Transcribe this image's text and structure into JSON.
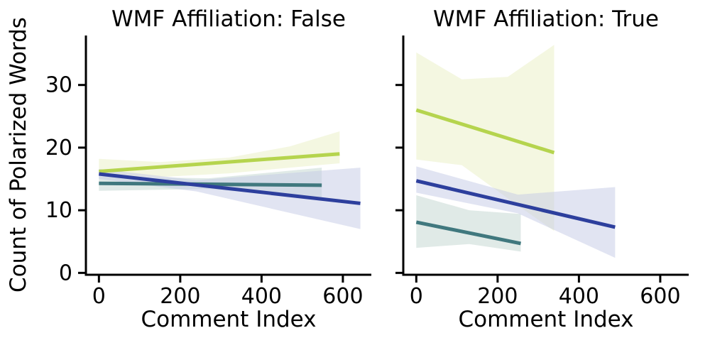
{
  "chart_data": {
    "type": "line",
    "description": "Two-facet regression plot (lmplot style) of polarized word counts vs comment index, three groups per facet with confidence bands",
    "xlabel": "Comment Index",
    "ylabel": "Count of Polarized Words",
    "xlim": [
      -32,
      670
    ],
    "ylim": [
      -0.3,
      37.9
    ],
    "xticks": [
      0,
      200,
      400,
      600
    ],
    "yticks": [
      0,
      10,
      20,
      30
    ],
    "grid": false,
    "legend": "none",
    "axis_color": "#000000",
    "facets": [
      {
        "title": "WMF Affiliation: False",
        "series": [
          {
            "name": "group-green",
            "color": "#b5d44e",
            "band_color": "#e9efc4",
            "x": [
              0,
              592
            ],
            "y": [
              16.2,
              19.0
            ],
            "band": {
              "x": [
                0,
                150,
                320,
                470,
                592
              ],
              "top": [
                18.2,
                17.7,
                18.4,
                20.2,
                22.6
              ],
              "bottom": [
                15.6,
                15.3,
                15.9,
                16.8,
                17.5
              ]
            }
          },
          {
            "name": "group-teal",
            "color": "#40787e",
            "band_color": "#c2d6cf",
            "x": [
              0,
              548
            ],
            "y": [
              14.3,
              14.0
            ],
            "band": {
              "x": [
                0,
                270,
                548
              ],
              "top": [
                15.4,
                15.1,
                16.8
              ],
              "bottom": [
                13.1,
                13.4,
                11.9
              ]
            }
          },
          {
            "name": "group-blue",
            "color": "#2d3f9d",
            "band_color": "#c3c9e6",
            "x": [
              0,
              643
            ],
            "y": [
              15.8,
              11.1
            ],
            "band": {
              "x": [
                0,
                240,
                643
              ],
              "top": [
                16.6,
                14.8,
                16.8
              ],
              "bottom": [
                15.0,
                13.0,
                7.0
              ]
            }
          }
        ]
      },
      {
        "title": "WMF Affiliation: True",
        "series": [
          {
            "name": "group-green",
            "color": "#b5d44e",
            "band_color": "#e9efc4",
            "x": [
              0,
              339
            ],
            "y": [
              26.0,
              19.2
            ],
            "band": {
              "x": [
                0,
                112,
                225,
                339
              ],
              "top": [
                35.2,
                30.9,
                31.3,
                36.4
              ],
              "bottom": [
                18.1,
                17.2,
                11.9,
                6.7
              ]
            }
          },
          {
            "name": "group-teal",
            "color": "#40787e",
            "band_color": "#c2d6cf",
            "x": [
              0,
              257
            ],
            "y": [
              8.1,
              4.7
            ],
            "band": {
              "x": [
                0,
                130,
                257
              ],
              "top": [
                12.4,
                10.0,
                9.4
              ],
              "bottom": [
                4.0,
                4.6,
                3.4
              ]
            }
          },
          {
            "name": "group-blue",
            "color": "#2d3f9d",
            "band_color": "#c3c9e6",
            "x": [
              0,
              489
            ],
            "y": [
              14.7,
              7.3
            ],
            "band": {
              "x": [
                0,
                250,
                489
              ],
              "top": [
                17.0,
                12.5,
                13.7
              ],
              "bottom": [
                12.8,
                9.5,
                2.4
              ]
            }
          }
        ]
      }
    ]
  }
}
